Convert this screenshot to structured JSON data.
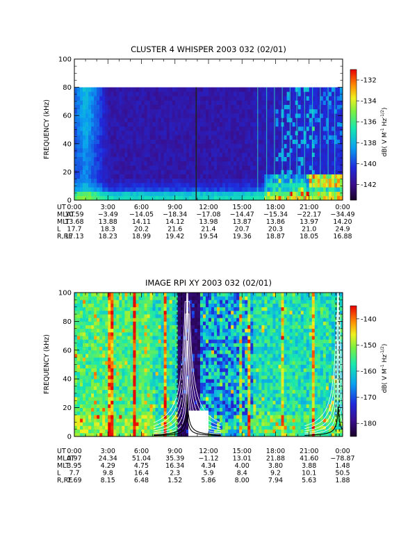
{
  "chart_data": [
    {
      "type": "heatmap",
      "title": "CLUSTER 4 WHISPER 2003 032 (02/01)",
      "ylabel": "FREQUENCY (kHz)",
      "ylim": [
        0,
        100
      ],
      "y_ticks": [
        "0",
        "20",
        "40",
        "60",
        "80",
        "100"
      ],
      "data_ylim": [
        0,
        80
      ],
      "colorbar": {
        "label": "dB( V M⁻¹ Hz⁻¹ᐟ²)",
        "label_main": "dB( V M",
        "label_sup1": "-1",
        "label_mid": " Hz",
        "label_sup2": "-1/2",
        "label_end": ")",
        "range": [
          -143.5,
          -131
        ],
        "ticks": [
          "-132",
          "-134",
          "-136",
          "-138",
          "-140",
          "-142"
        ],
        "tick_values": [
          -132,
          -134,
          -136,
          -138,
          -140,
          -142
        ]
      },
      "ephemeris": {
        "row_labels": [
          "UT",
          "MLAT",
          "MLT",
          "L",
          "R,RE"
        ],
        "ut": [
          "0:00",
          "3:00",
          "6:00",
          "9:00",
          "12:00",
          "15:00",
          "18:00",
          "21:00",
          "0:00"
        ],
        "mlat": [
          "10.59",
          "−3.49",
          "−14.05",
          "−18.34",
          "−17.08",
          "−14.47",
          "−15.34",
          "−22.17",
          "−34.49"
        ],
        "mlt": [
          "13.68",
          "13.88",
          "14.11",
          "14.12",
          "13.98",
          "13.87",
          "13.86",
          "13.97",
          "14.20"
        ],
        "l": [
          "17.7",
          "18.3",
          "20.2",
          "21.6",
          "21.4",
          "20.7",
          "20.3",
          "21.0",
          "24.9"
        ],
        "rre": [
          "17.13",
          "18.23",
          "18.99",
          "19.42",
          "19.54",
          "19.36",
          "18.87",
          "18.05",
          "16.88"
        ]
      }
    },
    {
      "type": "heatmap",
      "title": "IMAGE RPI XY 2003 032 (02/01)",
      "ylabel": "FREQUENCY (kHz)",
      "ylim": [
        0,
        100
      ],
      "y_ticks": [
        "0",
        "20",
        "40",
        "60",
        "80",
        "100"
      ],
      "colorbar": {
        "label": "dB( V M⁻¹ Hz⁻¹ᐟ²)",
        "label_main": "dB( V M",
        "label_sup1": "-1",
        "label_mid": " Hz",
        "label_sup2": "-1/2",
        "label_end": ")",
        "range": [
          -185,
          -135
        ],
        "ticks": [
          "-140",
          "-150",
          "-160",
          "-170",
          "-180"
        ],
        "tick_values": [
          -140,
          -150,
          -160,
          -170,
          -180
        ]
      },
      "ephemeris": {
        "row_labels": [
          "UT",
          "MLAT",
          "MLT",
          "L",
          "R,RE"
        ],
        "ut": [
          "0:00",
          "3:00",
          "6:00",
          "9:00",
          "12:00",
          "15:00",
          "18:00",
          "21:00",
          "0:00"
        ],
        "mlat": [
          "0.97",
          "24.34",
          "51.04",
          "35.39",
          "−1.12",
          "13.01",
          "21.88",
          "41.60",
          "−78.87"
        ],
        "mlt": [
          "3.95",
          "4.29",
          "4.75",
          "16.34",
          "4.34",
          "4.00",
          "3.80",
          "3.88",
          "1.48"
        ],
        "l": [
          "7.7",
          "9.8",
          "16.4",
          "2.3",
          "5.9",
          "8.4",
          "9.2",
          "10.1",
          "50.5"
        ],
        "rre": [
          "7.69",
          "8.15",
          "6.48",
          "1.52",
          "5.86",
          "8.00",
          "7.94",
          "5.63",
          "1.88"
        ]
      }
    }
  ]
}
